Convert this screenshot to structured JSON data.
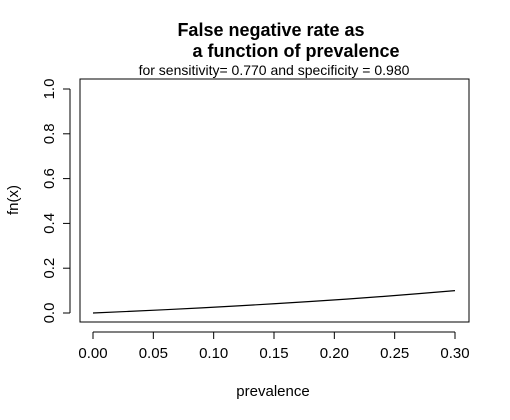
{
  "chart_data": {
    "type": "line",
    "title_lines": [
      "False negative rate as",
      "a function of prevalence"
    ],
    "subtitle": "for sensitivity= 0.770 and specificity = 0.980",
    "xlabel": "prevalence",
    "ylabel": "fn(x)",
    "xlim": [
      0.0,
      0.3
    ],
    "ylim": [
      0.0,
      1.0
    ],
    "x_ticks": [
      0.0,
      0.05,
      0.1,
      0.15,
      0.2,
      0.25,
      0.3
    ],
    "x_tick_labels": [
      "0.00",
      "0.05",
      "0.10",
      "0.15",
      "0.20",
      "0.25",
      "0.30"
    ],
    "y_ticks": [
      0.0,
      0.2,
      0.4,
      0.6,
      0.8,
      1.0
    ],
    "y_tick_labels": [
      "0.0",
      "0.2",
      "0.4",
      "0.6",
      "0.8",
      "1.0"
    ],
    "grid": false,
    "series": [
      {
        "x": [
          0.0,
          0.03,
          0.06,
          0.09,
          0.12,
          0.15,
          0.18,
          0.21,
          0.24,
          0.27,
          0.3
        ],
        "y": [
          0.0,
          0.0072,
          0.0148,
          0.023,
          0.0318,
          0.0412,
          0.0512,
          0.062,
          0.0737,
          0.0864,
          0.1
        ]
      }
    ],
    "line_color": "#000000"
  }
}
